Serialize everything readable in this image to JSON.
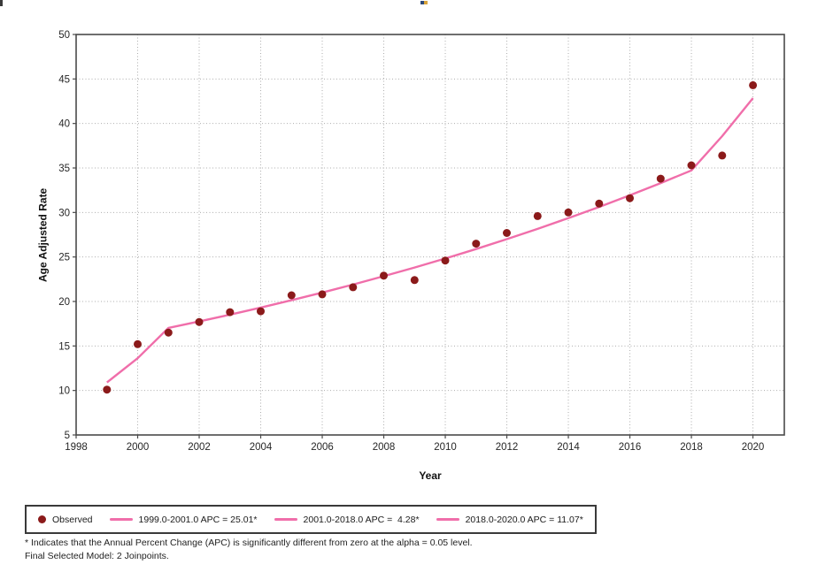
{
  "axes": {
    "x_title": "Year",
    "y_title": "Age Adjusted Rate"
  },
  "legend": {
    "observed_label": "Observed",
    "items": [
      {
        "label": "1999.0-2001.0 APC = 25.01*"
      },
      {
        "label": "2001.0-2018.0 APC =  4.28*"
      },
      {
        "label": "2018.0-2020.0 APC = 11.07*"
      }
    ]
  },
  "footnotes": {
    "line1": "* Indicates that the Annual Percent Change (APC) is significantly different from zero at the alpha = 0.05 level.",
    "line2": "Final Selected Model: 2 Joinpoints."
  },
  "chart_data": {
    "type": "scatter",
    "title": "",
    "xlabel": "Year",
    "ylabel": "Age Adjusted Rate",
    "xlim": [
      1998,
      2021.02
    ],
    "ylim": [
      5,
      50
    ],
    "x_ticks": [
      1998,
      2000,
      2002,
      2004,
      2006,
      2008,
      2010,
      2012,
      2014,
      2016,
      2018,
      2020
    ],
    "y_ticks": [
      5,
      10,
      15,
      20,
      25,
      30,
      35,
      40,
      45,
      50
    ],
    "grid": "dotted",
    "legend_position": "bottom-left-outside",
    "observed": {
      "name": "Observed",
      "years": [
        1999,
        2000,
        2001,
        2002,
        2003,
        2004,
        2005,
        2006,
        2007,
        2008,
        2009,
        2010,
        2011,
        2012,
        2013,
        2014,
        2015,
        2016,
        2017,
        2018,
        2019,
        2020
      ],
      "values": [
        10.1,
        15.2,
        16.5,
        17.7,
        18.8,
        18.9,
        20.7,
        20.8,
        21.6,
        22.9,
        22.4,
        24.6,
        26.5,
        27.7,
        29.6,
        30.0,
        31.0,
        31.6,
        33.8,
        35.3,
        36.4,
        44.3
      ]
    },
    "trend_segments": [
      {
        "label": "1999.0-2001.0 APC = 25.01*",
        "start_year": 1999,
        "end_year": 2001,
        "start_value": 10.9,
        "apc_percent": 25.01
      },
      {
        "label": "2001.0-2018.0 APC = 4.28*",
        "start_year": 2001,
        "end_year": 2018,
        "start_value": 17.03,
        "apc_percent": 4.28
      },
      {
        "label": "2018.0-2020.0 APC = 11.07*",
        "start_year": 2018,
        "end_year": 2020,
        "start_value": 34.73,
        "apc_percent": 11.07
      }
    ],
    "final_model": "2 Joinpoints",
    "colors": {
      "observed": "#8B1A1A",
      "trend": "#F06EAA",
      "grid": "#ADADAD",
      "frame": "#4A4A4A",
      "tick_text": "#262626"
    }
  }
}
